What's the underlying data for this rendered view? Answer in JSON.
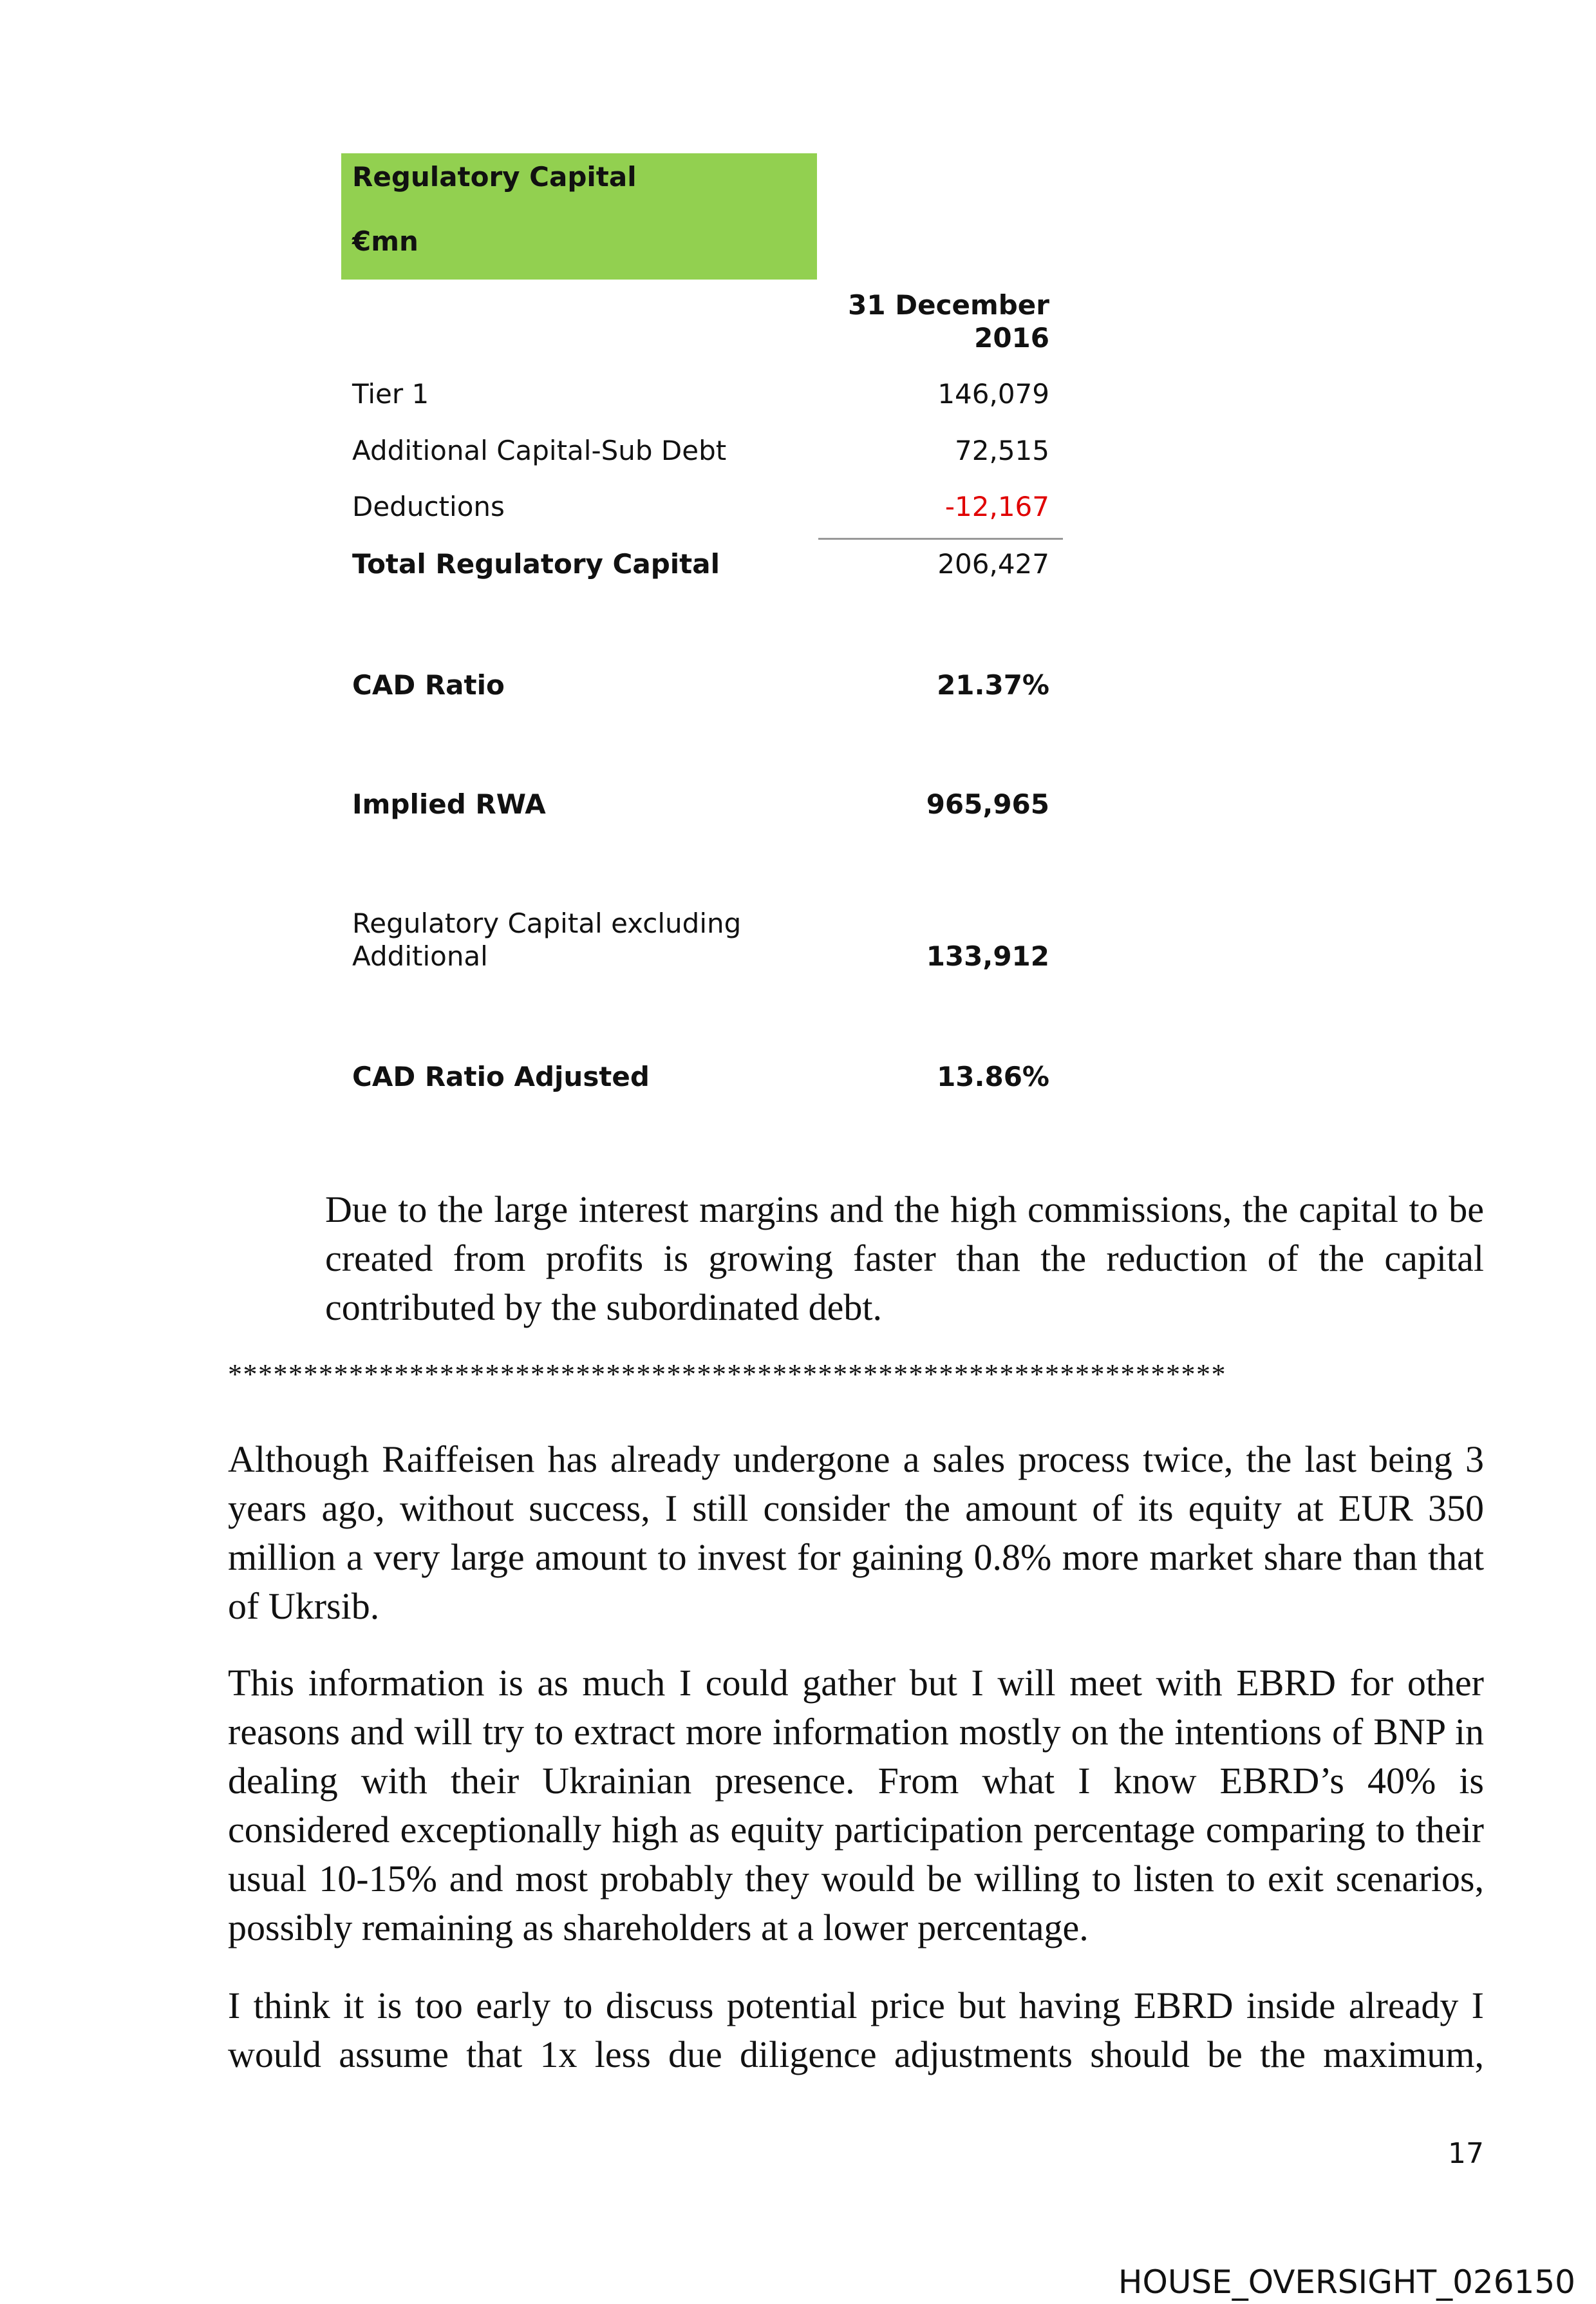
{
  "table": {
    "title": "Regulatory Capital",
    "unit": "€mn",
    "column_header_line1": "31 December",
    "column_header_line2": "2016",
    "header_color": "#92d050",
    "rows": [
      {
        "label": "Tier 1",
        "value": "146,079"
      },
      {
        "label": "Additional Capital-Sub Debt",
        "value": "72,515"
      },
      {
        "label": "Deductions",
        "value": "-12,167",
        "color": "#e00000"
      },
      {
        "label": "Total Regulatory Capital",
        "value": "206,427"
      },
      {
        "label": "CAD Ratio",
        "value": "21.37%"
      },
      {
        "label": "Implied RWA",
        "value": "965,965"
      },
      {
        "label_line1": "Regulatory Capital excluding",
        "label_line2": "Additional",
        "value": "133,912"
      },
      {
        "label": "CAD Ratio Adjusted",
        "value": "13.86%"
      }
    ]
  },
  "paragraphs": [
    {
      "lines": [
        "Due to the large interest margins and the high commissions, the capital to be",
        "created from profits is growing faster than the reduction of the capital",
        "contributed by the subordinated debt."
      ]
    },
    {
      "lines": [
        "Although Raiffeisen has already undergone a sales process twice, the last being 3",
        "years ago, without success, I still consider the amount of its equity at EUR 350",
        "million a very large amount to invest for gaining 0.8% more market share than that",
        "of Ukrsib."
      ]
    },
    {
      "lines": [
        "This information is as much I could gather but I will meet with EBRD for other",
        "reasons and will try to extract more information mostly on the intentions of BNP in",
        "dealing with their Ukrainian presence. From what I know EBRD’s 40% is",
        "considered exceptionally high as equity participation percentage comparing to their",
        "usual 10-15% and most probably they would be willing to listen to exit scenarios,",
        "possibly remaining as shareholders at a lower percentage."
      ]
    },
    {
      "lines": [
        "I think it is too early to discuss potential price but having EBRD inside already I",
        "would assume that 1x less due diligence adjustments should be the maximum,"
      ]
    }
  ],
  "separator": "******************************************************************",
  "page_number": "17",
  "footer": "HOUSE_OVERSIGHT_026150"
}
